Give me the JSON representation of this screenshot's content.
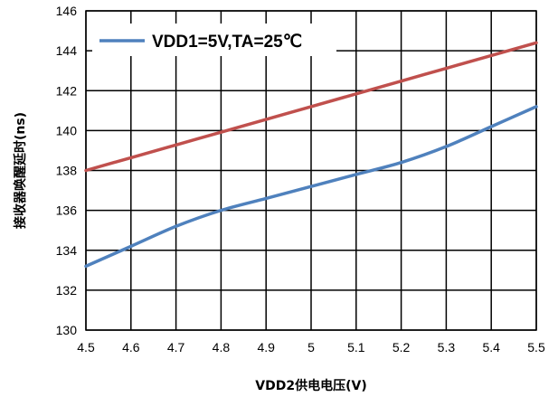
{
  "chart_data": {
    "type": "line",
    "xlabel": "VDD2供电电压(V)",
    "ylabel": "接收器唤醒延时(ns)",
    "xlim": [
      4.5,
      5.5
    ],
    "ylim": [
      130,
      146
    ],
    "x_ticks": [
      "4.5",
      "4.6",
      "4.7",
      "4.8",
      "4.9",
      "5",
      "5.1",
      "5.2",
      "5.3",
      "5.4",
      "5.5"
    ],
    "y_ticks": [
      "130",
      "132",
      "134",
      "136",
      "138",
      "140",
      "142",
      "144",
      "146"
    ],
    "grid": true,
    "legend_position": "top-left",
    "series": [
      {
        "name": "VDD1=5V,TA=25℃",
        "color": "#4f81bd",
        "x": [
          4.5,
          4.6,
          4.7,
          4.8,
          4.9,
          5.0,
          5.1,
          5.2,
          5.3,
          5.4,
          5.5
        ],
        "values": [
          133.2,
          134.2,
          135.2,
          136.0,
          136.6,
          137.2,
          137.8,
          138.4,
          139.2,
          140.2,
          141.2
        ]
      },
      {
        "color": "#c0504d",
        "x": [
          4.5,
          4.6,
          4.7,
          4.8,
          4.9,
          5.0,
          5.1,
          5.2,
          5.3,
          5.4,
          5.5
        ],
        "values": [
          138.0,
          138.64,
          139.28,
          139.92,
          140.56,
          141.2,
          141.84,
          142.48,
          143.12,
          143.76,
          144.4
        ]
      }
    ]
  }
}
